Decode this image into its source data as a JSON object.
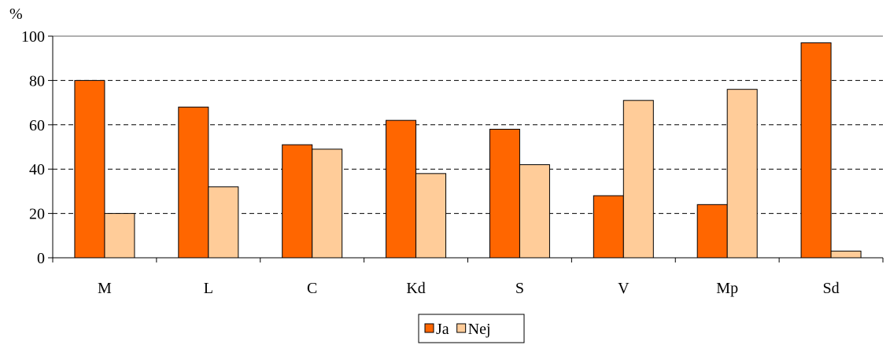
{
  "chart_data": {
    "type": "bar",
    "title": "",
    "xlabel": "",
    "ylabel": "%",
    "ylim": [
      0,
      100
    ],
    "yticks": [
      0,
      20,
      40,
      60,
      80,
      100
    ],
    "grid": "horizontal dashed",
    "legend_position": "bottom-center",
    "categories": [
      "M",
      "L",
      "C",
      "Kd",
      "S",
      "V",
      "Mp",
      "Sd"
    ],
    "series": [
      {
        "name": "Ja",
        "color": "#ff6600",
        "values": [
          80,
          68,
          51,
          62,
          58,
          28,
          24,
          97
        ]
      },
      {
        "name": "Nej",
        "color": "#ffcc99",
        "values": [
          20,
          32,
          49,
          38,
          42,
          71,
          76,
          3
        ]
      }
    ]
  }
}
